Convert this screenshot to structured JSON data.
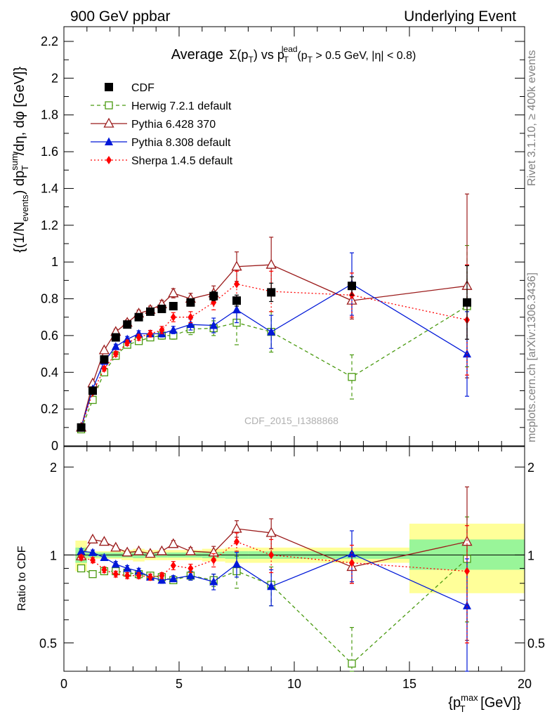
{
  "header": {
    "left": "900 GeV ppbar",
    "right": "Underlying Event"
  },
  "side_labels": {
    "rivet": "Rivet 3.1.10, ≥ 400k events",
    "mcplots": "mcplots.cern.ch [arXiv:1306.3436]"
  },
  "watermark": "CDF_2015_I1388868",
  "title": {
    "avg": "Average",
    "sigma": "Σ(p",
    "sigma_sub": "T",
    "vs": ") vs p",
    "lead_sup": "lead",
    "lead_sub": "T",
    "cut": " (p",
    "cut_sub": "T",
    "cut_rest": " > 0.5 GeV, |η| < 0.8)"
  },
  "ylabel_top": {
    "p1": "{(1/N",
    "p1_sub": "events",
    "p2": ") dp",
    "p2_sup": "sum",
    "p2_sub": "T",
    "p3": "/dη, dφ [GeV]}"
  },
  "ylabel_bottom": "Ratio to CDF",
  "xlabel": {
    "a": "{p",
    "sup": "max",
    "sub": "T",
    "b": " [GeV]}"
  },
  "colors": {
    "data": "#000000",
    "herwig": "#4a9a10",
    "pythia6": "#9b1b1b",
    "pythia8": "#0018d8",
    "sherpa": "#ff0000",
    "band_yellow": "#ffff99",
    "band_green": "#99f599"
  },
  "chart_data": {
    "type": "scatter",
    "x_axis": {
      "ticks": [
        "0",
        "5",
        "10",
        "15",
        "20"
      ],
      "xlim": [
        0,
        20
      ]
    },
    "y_axis_top": {
      "ylim": [
        0,
        2.28
      ],
      "ticks": [
        "0",
        "0.2",
        "0.4",
        "0.6",
        "0.8",
        "1",
        "1.2",
        "1.4",
        "1.6",
        "1.8",
        "2",
        "2.2"
      ]
    },
    "y_axis_ratio": {
      "ylim": [
        0.4,
        2.35
      ],
      "log": true,
      "ticks": [
        "0.5",
        "1",
        "2"
      ]
    },
    "x": [
      0.75,
      1.25,
      1.75,
      2.25,
      2.75,
      3.25,
      3.75,
      4.25,
      4.75,
      5.5,
      6.5,
      7.5,
      9.0,
      12.5,
      17.5
    ],
    "x_edges": [
      0.5,
      1.0,
      1.5,
      2.0,
      2.5,
      3.0,
      3.5,
      4.0,
      4.5,
      5.0,
      6.0,
      7.0,
      8.0,
      10.0,
      15.0,
      20.0
    ],
    "series": [
      {
        "name": "CDF",
        "key": "data",
        "marker": "square_filled",
        "values": [
          0.1,
          0.3,
          0.47,
          0.59,
          0.66,
          0.7,
          0.73,
          0.745,
          0.76,
          0.78,
          0.815,
          0.79,
          0.835,
          0.87,
          0.78
        ],
        "errors": [
          0.005,
          0.01,
          0.01,
          0.012,
          0.013,
          0.015,
          0.016,
          0.017,
          0.018,
          0.02,
          0.025,
          0.03,
          0.05,
          0.05,
          0.2
        ]
      },
      {
        "name": "Herwig 7.2.1 default",
        "key": "herwig",
        "marker": "square_open",
        "dash": "5,4",
        "values": [
          0.09,
          0.25,
          0.4,
          0.49,
          0.55,
          0.57,
          0.59,
          0.6,
          0.6,
          0.635,
          0.64,
          0.67,
          0.62,
          0.375,
          0.76
        ],
        "errors": [
          0.005,
          0.01,
          0.012,
          0.013,
          0.015,
          0.016,
          0.018,
          0.02,
          0.02,
          0.03,
          0.04,
          0.12,
          0.11,
          0.12,
          0.33
        ]
      },
      {
        "name": "Pythia 6.428 370",
        "key": "pythia6",
        "marker": "triangle_open",
        "values": [
          0.1,
          0.34,
          0.52,
          0.62,
          0.67,
          0.72,
          0.74,
          0.77,
          0.83,
          0.8,
          0.83,
          0.975,
          0.985,
          0.79,
          0.87
        ],
        "errors": [
          0.005,
          0.01,
          0.012,
          0.015,
          0.016,
          0.018,
          0.02,
          0.022,
          0.025,
          0.03,
          0.04,
          0.08,
          0.15,
          0.1,
          0.5
        ]
      },
      {
        "name": "Pythia 8.308 default",
        "key": "pythia8",
        "marker": "triangle_filled",
        "values": [
          0.1,
          0.31,
          0.46,
          0.54,
          0.58,
          0.61,
          0.61,
          0.61,
          0.63,
          0.66,
          0.655,
          0.74,
          0.62,
          0.88,
          0.5
        ],
        "errors": [
          0.005,
          0.01,
          0.012,
          0.013,
          0.015,
          0.016,
          0.017,
          0.018,
          0.02,
          0.03,
          0.04,
          0.07,
          0.09,
          0.17,
          0.23
        ]
      },
      {
        "name": "Sherpa 1.4.5 default",
        "key": "sherpa",
        "marker": "diamond_filled",
        "dash": "2,3",
        "values": [
          0.1,
          0.29,
          0.42,
          0.5,
          0.56,
          0.59,
          0.61,
          0.63,
          0.7,
          0.7,
          0.78,
          0.88,
          0.84,
          0.82,
          0.685
        ],
        "errors": [
          0.005,
          0.01,
          0.012,
          0.014,
          0.015,
          0.016,
          0.018,
          0.02,
          0.025,
          0.03,
          0.04,
          0.07,
          0.11,
          0.12,
          0.3
        ]
      }
    ],
    "ratio_series": [
      {
        "key": "herwig",
        "values": [
          0.9,
          0.86,
          0.88,
          0.88,
          0.87,
          0.86,
          0.85,
          0.84,
          0.82,
          0.85,
          0.82,
          0.88,
          0.79,
          0.425,
          0.97
        ],
        "errors": [
          0.02,
          0.02,
          0.02,
          0.02,
          0.02,
          0.02,
          0.02,
          0.02,
          0.02,
          0.03,
          0.04,
          0.11,
          0.12,
          0.14,
          0.38
        ]
      },
      {
        "key": "pythia6",
        "values": [
          0.99,
          1.13,
          1.11,
          1.06,
          1.02,
          1.03,
          1.01,
          1.03,
          1.09,
          1.03,
          1.02,
          1.23,
          1.19,
          0.91,
          1.11
        ],
        "errors": [
          0.02,
          0.02,
          0.02,
          0.02,
          0.02,
          0.02,
          0.02,
          0.02,
          0.03,
          0.03,
          0.05,
          0.08,
          0.14,
          0.11,
          0.6
        ]
      },
      {
        "key": "pythia8",
        "values": [
          1.03,
          1.02,
          0.98,
          0.93,
          0.9,
          0.88,
          0.84,
          0.82,
          0.83,
          0.85,
          0.81,
          0.93,
          0.78,
          1.01,
          0.67
        ],
        "errors": [
          0.02,
          0.02,
          0.02,
          0.02,
          0.02,
          0.02,
          0.02,
          0.02,
          0.02,
          0.03,
          0.05,
          0.09,
          0.11,
          0.2,
          0.3
        ]
      },
      {
        "key": "sherpa",
        "values": [
          0.98,
          0.96,
          0.89,
          0.86,
          0.85,
          0.85,
          0.84,
          0.85,
          0.92,
          0.9,
          0.96,
          1.11,
          1.0,
          0.94,
          0.88
        ],
        "errors": [
          0.02,
          0.02,
          0.02,
          0.02,
          0.02,
          0.02,
          0.02,
          0.02,
          0.03,
          0.03,
          0.05,
          0.08,
          0.13,
          0.14,
          0.38
        ]
      }
    ],
    "ratio_bands": {
      "yellow": [
        [
          0.88,
          1.12
        ],
        [
          0.97,
          1.03
        ],
        [
          0.97,
          1.03
        ],
        [
          0.97,
          1.03
        ],
        [
          0.96,
          1.04
        ],
        [
          0.95,
          1.05
        ],
        [
          0.96,
          1.04
        ],
        [
          0.96,
          1.04
        ],
        [
          0.96,
          1.04
        ],
        [
          0.96,
          1.04
        ],
        [
          0.95,
          1.05
        ],
        [
          0.94,
          1.06
        ],
        [
          0.94,
          1.06
        ],
        [
          0.94,
          1.06
        ],
        [
          0.74,
          1.28
        ]
      ],
      "green": [
        [
          0.94,
          1.06
        ],
        [
          0.98,
          1.02
        ],
        [
          0.98,
          1.02
        ],
        [
          0.98,
          1.02
        ],
        [
          0.98,
          1.02
        ],
        [
          0.975,
          1.025
        ],
        [
          0.98,
          1.02
        ],
        [
          0.98,
          1.02
        ],
        [
          0.98,
          1.02
        ],
        [
          0.98,
          1.02
        ],
        [
          0.975,
          1.025
        ],
        [
          0.97,
          1.03
        ],
        [
          0.97,
          1.03
        ],
        [
          0.97,
          1.03
        ],
        [
          0.89,
          1.13
        ]
      ]
    }
  }
}
